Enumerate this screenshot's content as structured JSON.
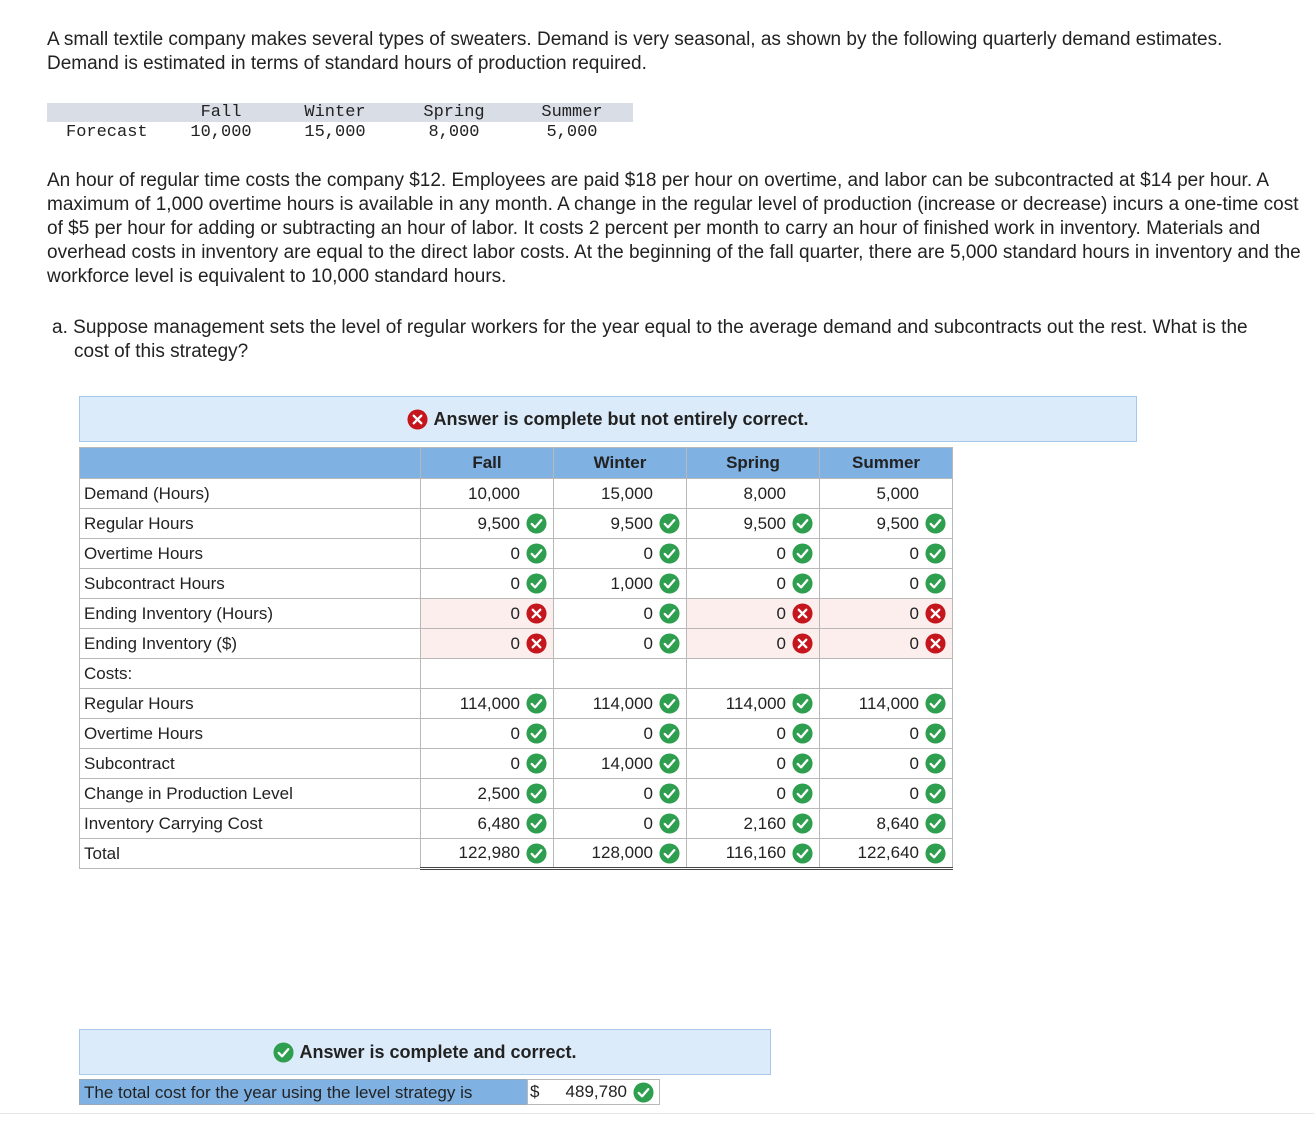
{
  "intro": "A small textile company makes several types of sweaters. Demand is very seasonal, as shown by the following quarterly demand estimates. Demand is estimated in terms of standard hours of production required.",
  "forecast_table": {
    "columns": [
      "Fall",
      "Winter",
      "Spring",
      "Summer"
    ],
    "row_label": "Forecast",
    "values": [
      "10,000",
      "15,000",
      "8,000",
      "5,000"
    ]
  },
  "details": "An hour of regular time costs the company $12. Employees are paid $18 per hour on overtime, and labor can be subcontracted at $14 per hour. A maximum of 1,000 overtime hours is available in any month. A change in the regular level of production (increase or decrease) incurs a one-time cost of $5 per hour for adding or subtracting an hour of labor. It costs 2 percent per month to carry an hour of finished work in inventory. Materials and overhead costs in inventory are equal to the direct labor costs. At the beginning of the fall quarter, there are 5,000 standard hours in inventory and the workforce level is equivalent to 10,000 standard hours.",
  "question": {
    "label": "a.",
    "text": "Suppose management sets the level of regular workers for the year equal to the average demand and subcontracts out the rest. What is the cost of this strategy?"
  },
  "answer_table": {
    "banner": {
      "text": "Answer is complete but not entirely correct.",
      "status": "incorrect"
    },
    "columns": [
      "Fall",
      "Winter",
      "Spring",
      "Summer"
    ],
    "rows": [
      {
        "label": "Demand (Hours)",
        "cells": [
          {
            "text": "10,000"
          },
          {
            "text": "15,000"
          },
          {
            "text": "8,000"
          },
          {
            "text": "5,000"
          }
        ]
      },
      {
        "label": "Regular Hours",
        "cells": [
          {
            "text": "9,500",
            "status": "correct"
          },
          {
            "text": "9,500",
            "status": "correct"
          },
          {
            "text": "9,500",
            "status": "correct"
          },
          {
            "text": "9,500",
            "status": "correct"
          }
        ]
      },
      {
        "label": "Overtime Hours",
        "cells": [
          {
            "text": "0",
            "status": "correct"
          },
          {
            "text": "0",
            "status": "correct"
          },
          {
            "text": "0",
            "status": "correct"
          },
          {
            "text": "0",
            "status": "correct"
          }
        ]
      },
      {
        "label": "Subcontract Hours",
        "cells": [
          {
            "text": "0",
            "status": "correct"
          },
          {
            "text": "1,000",
            "status": "correct"
          },
          {
            "text": "0",
            "status": "correct"
          },
          {
            "text": "0",
            "status": "correct"
          }
        ]
      },
      {
        "label": "Ending Inventory (Hours)",
        "cells": [
          {
            "text": "0",
            "status": "incorrect"
          },
          {
            "text": "0",
            "status": "correct"
          },
          {
            "text": "0",
            "status": "incorrect"
          },
          {
            "text": "0",
            "status": "incorrect"
          }
        ]
      },
      {
        "label": "Ending Inventory ($)",
        "cells": [
          {
            "text": "0",
            "status": "incorrect"
          },
          {
            "text": "0",
            "status": "correct"
          },
          {
            "text": "0",
            "status": "incorrect"
          },
          {
            "text": "0",
            "status": "incorrect"
          }
        ]
      },
      {
        "label": "Costs:",
        "cells": []
      },
      {
        "label": "Regular Hours",
        "cells": [
          {
            "text": "114,000",
            "status": "correct"
          },
          {
            "text": "114,000",
            "status": "correct"
          },
          {
            "text": "114,000",
            "status": "correct"
          },
          {
            "text": "114,000",
            "status": "correct"
          }
        ]
      },
      {
        "label": "Overtime Hours",
        "cells": [
          {
            "text": "0",
            "status": "correct"
          },
          {
            "text": "0",
            "status": "correct"
          },
          {
            "text": "0",
            "status": "correct"
          },
          {
            "text": "0",
            "status": "correct"
          }
        ]
      },
      {
        "label": "Subcontract",
        "cells": [
          {
            "text": "0",
            "status": "correct"
          },
          {
            "text": "14,000",
            "status": "correct"
          },
          {
            "text": "0",
            "status": "correct"
          },
          {
            "text": "0",
            "status": "correct"
          }
        ]
      },
      {
        "label": "Change in Production Level",
        "cells": [
          {
            "text": "2,500",
            "status": "correct"
          },
          {
            "text": "0",
            "status": "correct"
          },
          {
            "text": "0",
            "status": "correct"
          },
          {
            "text": "0",
            "status": "correct"
          }
        ]
      },
      {
        "label": "Inventory Carrying Cost",
        "cells": [
          {
            "text": "6,480",
            "status": "correct"
          },
          {
            "text": "0",
            "status": "correct"
          },
          {
            "text": "2,160",
            "status": "correct"
          },
          {
            "text": "8,640",
            "status": "correct"
          }
        ]
      },
      {
        "label": "Total",
        "total": true,
        "cells": [
          {
            "text": "122,980",
            "status": "correct"
          },
          {
            "text": "128,000",
            "status": "correct"
          },
          {
            "text": "116,160",
            "status": "correct"
          },
          {
            "text": "122,640",
            "status": "correct"
          }
        ]
      }
    ]
  },
  "summary": {
    "banner": {
      "text": "Answer is complete and correct.",
      "status": "correct"
    },
    "label": "The total cost for the year using the level strategy is",
    "currency": "$",
    "value": "489,780",
    "status": "correct"
  }
}
